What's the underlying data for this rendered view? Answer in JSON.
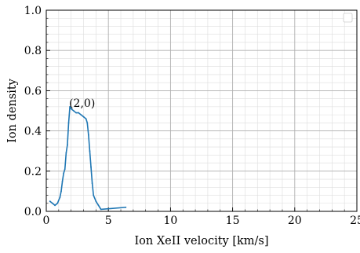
{
  "chart_data": {
    "type": "line",
    "title": "",
    "xlabel": "Ion XeII velocity [km/s]",
    "ylabel": "Ion density",
    "xlim": [
      0,
      25
    ],
    "ylim": [
      0,
      1.0
    ],
    "xticks": [
      0,
      5,
      10,
      15,
      20,
      25
    ],
    "yticks": [
      0.0,
      0.2,
      0.4,
      0.6,
      0.8,
      1.0
    ],
    "xtick_labels": [
      "0",
      "5",
      "10",
      "15",
      "20",
      "25"
    ],
    "ytick_labels": [
      "0.0",
      "0.2",
      "0.4",
      "0.6",
      "0.8",
      "1.0"
    ],
    "grid": "major and minor",
    "legend": "top-right (empty)",
    "series": [
      {
        "color": "#1f77b4",
        "x": [
          0.3,
          0.5,
          0.7,
          0.9,
          1.1,
          1.2,
          1.3,
          1.4,
          1.5,
          1.6,
          1.7,
          1.8,
          1.9,
          2.0,
          2.2,
          2.4,
          2.6,
          2.8,
          3.0,
          3.2,
          3.3,
          3.4,
          3.5,
          3.6,
          3.7,
          3.8,
          4.0,
          4.2,
          4.4,
          6.4
        ],
        "y": [
          0.05,
          0.04,
          0.03,
          0.04,
          0.07,
          0.1,
          0.15,
          0.19,
          0.21,
          0.29,
          0.33,
          0.44,
          0.52,
          0.51,
          0.5,
          0.49,
          0.49,
          0.48,
          0.47,
          0.46,
          0.44,
          0.38,
          0.3,
          0.22,
          0.14,
          0.08,
          0.05,
          0.03,
          0.01,
          0.02
        ]
      }
    ],
    "annotations": [
      {
        "text": "(2,0)",
        "x": 1.9,
        "y": 0.52
      }
    ]
  }
}
